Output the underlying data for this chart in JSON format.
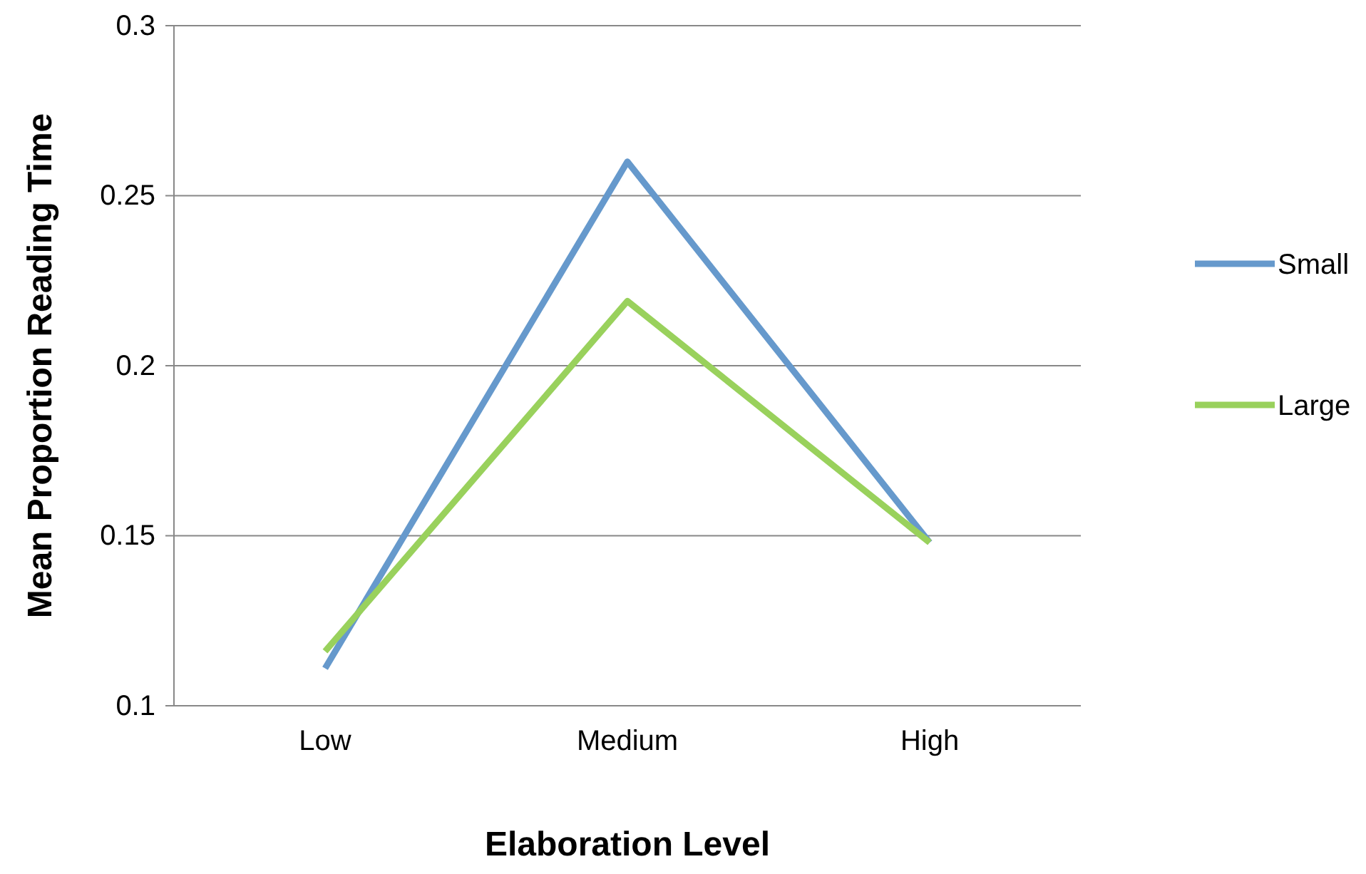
{
  "chart_data": {
    "type": "line",
    "xlabel": "Elaboration Level",
    "ylabel": "Mean Proportion Reading Time",
    "categories": [
      "Low",
      "Medium",
      "High"
    ],
    "series": [
      {
        "name": "Small",
        "color": "#6699cc",
        "values": [
          0.111,
          0.26,
          0.148
        ]
      },
      {
        "name": "Large",
        "color": "#99d15c",
        "values": [
          0.116,
          0.219,
          0.148
        ]
      }
    ],
    "ylim": [
      0.1,
      0.3
    ],
    "yticks": [
      0.1,
      0.15,
      0.2,
      0.25,
      0.3
    ],
    "grid": "y",
    "legend": "right",
    "marker": "none",
    "line_style": "solid"
  }
}
